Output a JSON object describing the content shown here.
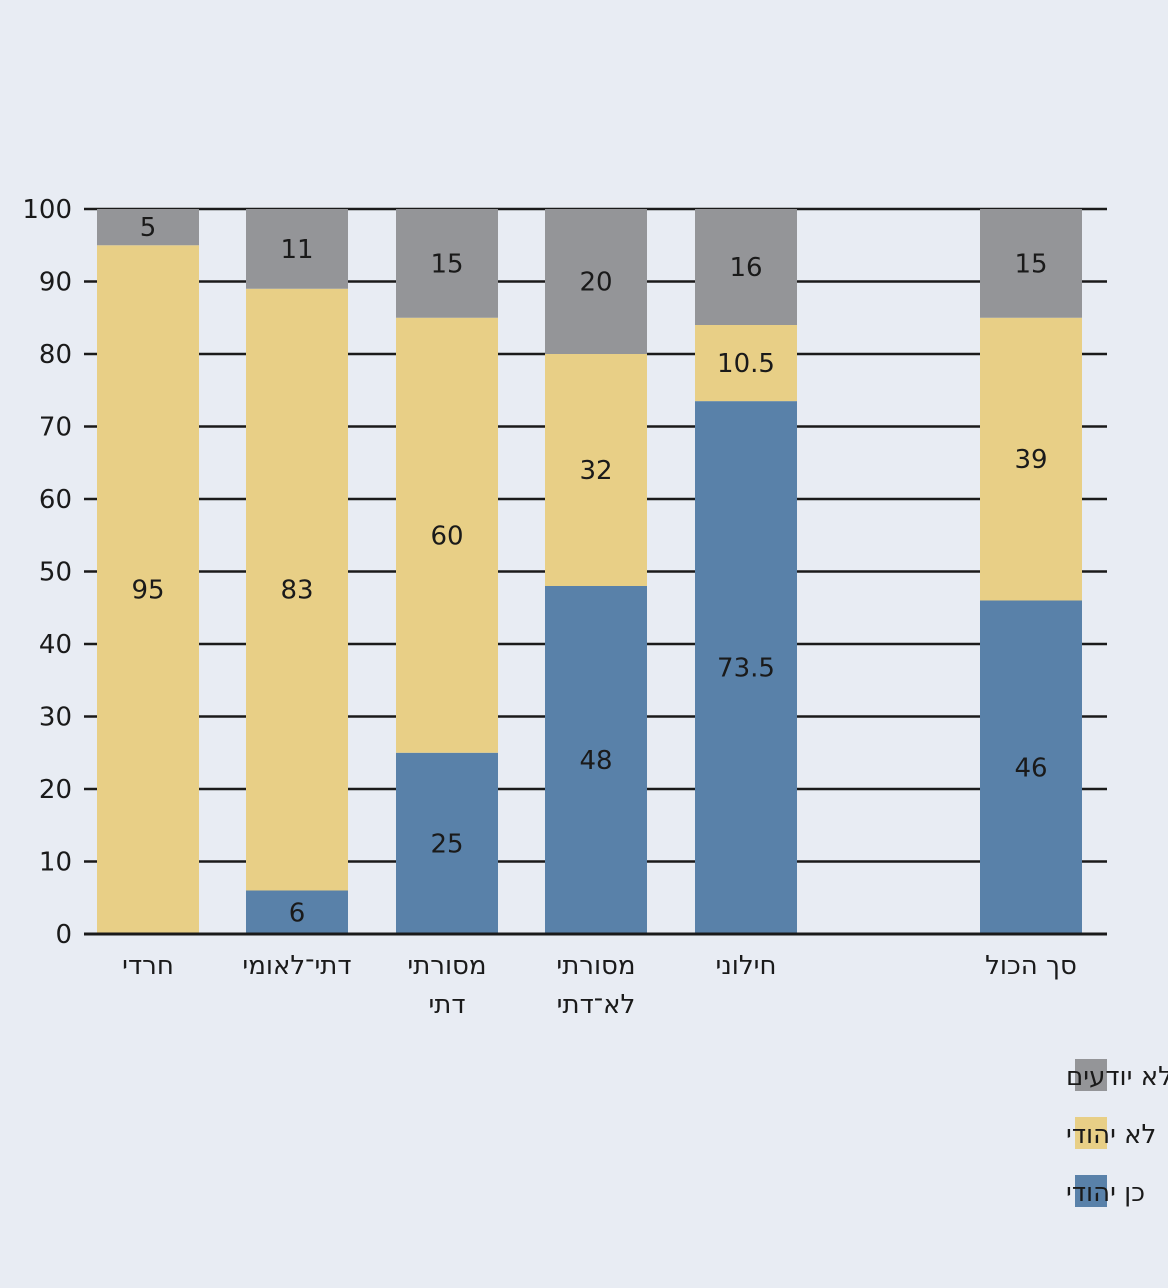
{
  "chart_data": {
    "type": "bar",
    "stacked": true,
    "title": "",
    "xlabel": "",
    "ylabel": "",
    "ylim": [
      0,
      100
    ],
    "yticks": [
      0,
      10,
      20,
      30,
      40,
      50,
      60,
      70,
      80,
      90,
      100
    ],
    "grid": true,
    "legend_position": "bottom-right",
    "categories": [
      [
        "חרדי"
      ],
      [
        "דתי־לאומי"
      ],
      [
        "מסורתי",
        "דתי"
      ],
      [
        "מסורתי",
        "לא־דתי"
      ],
      [
        "חילוני"
      ],
      [
        "סך הכול"
      ]
    ],
    "series": [
      {
        "name": "כן יהודי",
        "color": "#5981a9",
        "values": [
          null,
          6,
          25,
          48,
          73.5,
          46
        ],
        "labels": [
          "",
          "6",
          "25",
          "48",
          "73.5",
          "46"
        ]
      },
      {
        "name": "לא יהודי",
        "color": "#e8cf86",
        "values": [
          95,
          83,
          60,
          32,
          10.5,
          39
        ],
        "labels": [
          "95",
          "83",
          "60",
          "32",
          "10.5",
          "39"
        ]
      },
      {
        "name": "לא יודעים",
        "color": "#949598",
        "values": [
          5,
          11,
          15,
          20,
          16,
          15
        ],
        "labels": [
          "5",
          "11",
          "15",
          "20",
          "16",
          "15"
        ]
      }
    ]
  }
}
